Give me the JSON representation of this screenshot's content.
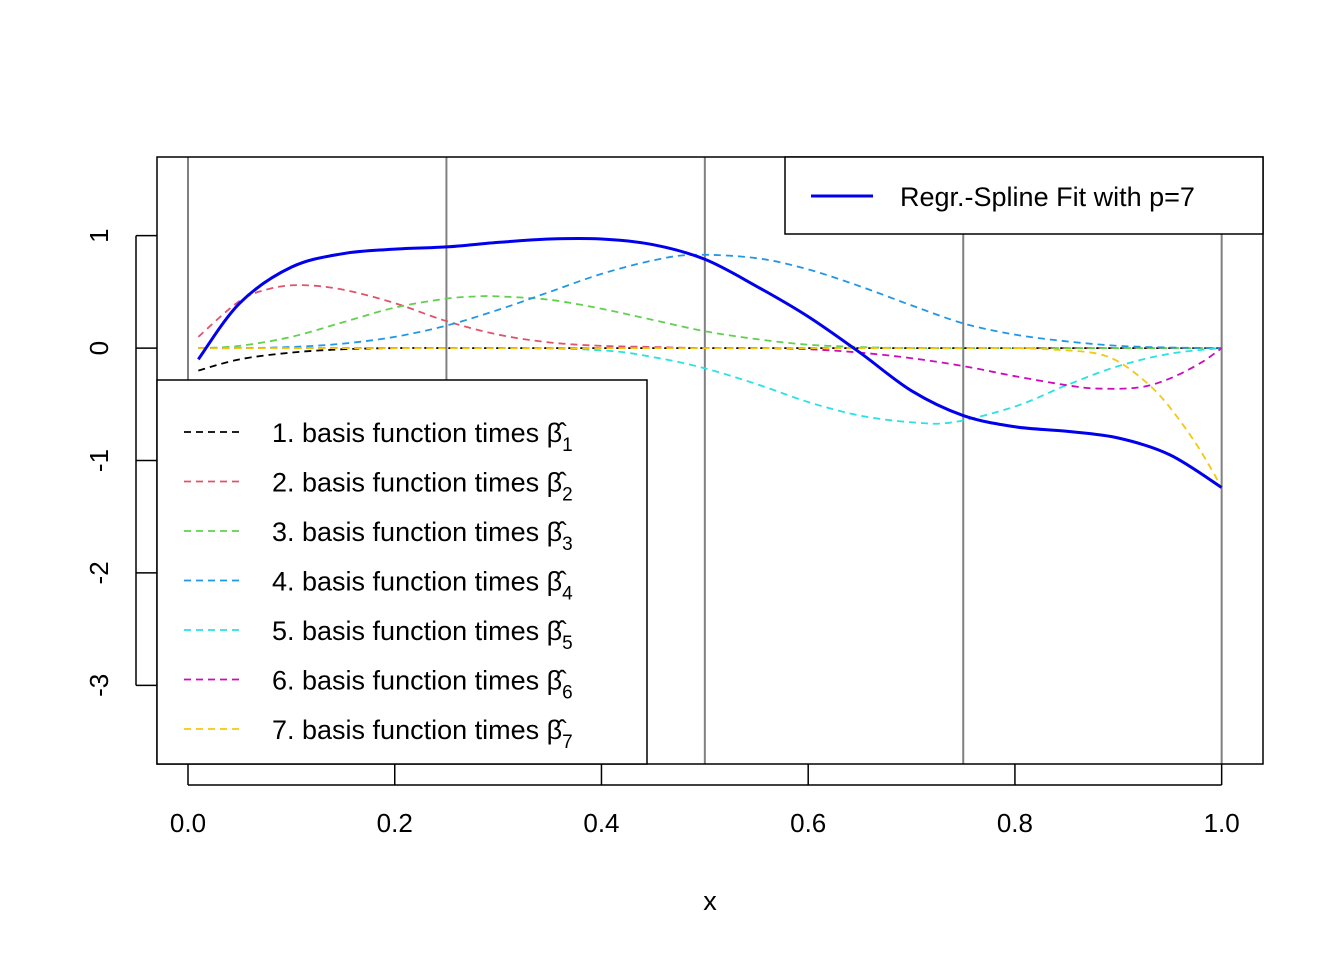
{
  "chart_data": {
    "type": "line",
    "xlabel": "x",
    "ylabel": "",
    "xlim": [
      -0.03,
      1.04
    ],
    "ylim": [
      -3.7,
      1.7
    ],
    "x_ticks": [
      0.0,
      0.2,
      0.4,
      0.6,
      0.8,
      1.0
    ],
    "x_tick_labels": [
      "0.0",
      "0.2",
      "0.4",
      "0.6",
      "0.8",
      "1.0"
    ],
    "y_ticks": [
      1,
      0,
      -1,
      -2,
      -3
    ],
    "y_tick_labels": [
      "1",
      "0",
      "-1",
      "-2",
      "-3"
    ],
    "knots": [
      0.0,
      0.25,
      0.5,
      0.75,
      1.0
    ],
    "knot_color": "#808080",
    "baseline_y": 0,
    "fit": {
      "name": "Regr.-Spline Fit with p=7",
      "color": "#0000ee",
      "x": [
        0.01,
        0.05,
        0.1,
        0.15,
        0.2,
        0.25,
        0.3,
        0.35,
        0.4,
        0.45,
        0.5,
        0.55,
        0.6,
        0.65,
        0.7,
        0.75,
        0.8,
        0.85,
        0.9,
        0.95,
        1.0
      ],
      "y": [
        -0.1,
        0.4,
        0.72,
        0.84,
        0.88,
        0.9,
        0.94,
        0.97,
        0.97,
        0.92,
        0.79,
        0.55,
        0.28,
        -0.04,
        -0.38,
        -0.6,
        -0.7,
        -0.74,
        -0.8,
        -0.95,
        -1.24
      ]
    },
    "series": [
      {
        "name": "1. basis function times",
        "index": "1",
        "color": "#000000",
        "x": [
          0.01,
          0.05,
          0.1,
          0.15,
          0.2,
          0.25,
          0.3,
          0.4,
          0.5,
          0.6,
          0.7,
          0.8,
          0.9,
          1.0
        ],
        "y": [
          -0.2,
          -0.1,
          -0.04,
          -0.01,
          0.0,
          0.0,
          0.0,
          0.0,
          0.0,
          0.0,
          0.0,
          0.0,
          0.0,
          0.0
        ]
      },
      {
        "name": "2. basis function times",
        "index": "2",
        "color": "#df536b",
        "x": [
          0.01,
          0.05,
          0.08,
          0.11,
          0.15,
          0.2,
          0.25,
          0.3,
          0.35,
          0.4,
          0.45,
          0.5,
          0.6,
          0.7,
          0.8,
          0.9,
          1.0
        ],
        "y": [
          0.1,
          0.42,
          0.53,
          0.56,
          0.52,
          0.4,
          0.24,
          0.12,
          0.05,
          0.02,
          0.01,
          0.0,
          0.0,
          0.0,
          0.0,
          0.0,
          0.0
        ]
      },
      {
        "name": "3. basis function times",
        "index": "3",
        "color": "#61d04f",
        "x": [
          0.01,
          0.05,
          0.1,
          0.15,
          0.2,
          0.25,
          0.28,
          0.3,
          0.35,
          0.4,
          0.45,
          0.5,
          0.55,
          0.6,
          0.65,
          0.7,
          0.8,
          0.9,
          1.0
        ],
        "y": [
          0.0,
          0.02,
          0.1,
          0.23,
          0.36,
          0.44,
          0.46,
          0.46,
          0.43,
          0.35,
          0.25,
          0.15,
          0.08,
          0.03,
          0.01,
          0.0,
          0.0,
          0.0,
          0.0
        ]
      },
      {
        "name": "4. basis function times",
        "index": "4",
        "color": "#2297e6",
        "x": [
          0.01,
          0.05,
          0.1,
          0.15,
          0.2,
          0.25,
          0.3,
          0.35,
          0.4,
          0.45,
          0.49,
          0.55,
          0.6,
          0.65,
          0.7,
          0.75,
          0.8,
          0.85,
          0.9,
          0.95,
          1.0
        ],
        "y": [
          0.0,
          0.0,
          0.01,
          0.04,
          0.1,
          0.2,
          0.34,
          0.5,
          0.66,
          0.78,
          0.83,
          0.8,
          0.7,
          0.55,
          0.38,
          0.22,
          0.12,
          0.06,
          0.02,
          0.005,
          0.0
        ]
      },
      {
        "name": "5. basis function times",
        "index": "5",
        "color": "#28e2e5",
        "x": [
          0.01,
          0.3,
          0.4,
          0.45,
          0.5,
          0.55,
          0.6,
          0.65,
          0.7,
          0.74,
          0.8,
          0.85,
          0.9,
          0.95,
          1.0
        ],
        "y": [
          0.0,
          0.0,
          -0.02,
          -0.08,
          -0.18,
          -0.32,
          -0.48,
          -0.6,
          -0.66,
          -0.66,
          -0.52,
          -0.33,
          -0.16,
          -0.05,
          0.0
        ]
      },
      {
        "name": "6. basis function times",
        "index": "6",
        "color": "#cd0bbc",
        "x": [
          0.01,
          0.5,
          0.55,
          0.6,
          0.65,
          0.7,
          0.75,
          0.8,
          0.85,
          0.88,
          0.92,
          0.95,
          0.98,
          1.0
        ],
        "y": [
          0.0,
          0.0,
          0.0,
          -0.01,
          -0.04,
          -0.09,
          -0.16,
          -0.25,
          -0.33,
          -0.36,
          -0.35,
          -0.27,
          -0.13,
          0.0
        ]
      },
      {
        "name": "7. basis function times",
        "index": "7",
        "color": "#f5c710",
        "x": [
          0.01,
          0.75,
          0.8,
          0.85,
          0.88,
          0.9,
          0.92,
          0.94,
          0.96,
          0.98,
          1.0
        ],
        "y": [
          0.0,
          0.0,
          0.0,
          -0.02,
          -0.05,
          -0.12,
          -0.25,
          -0.42,
          -0.65,
          -0.92,
          -1.24
        ]
      }
    ],
    "legend_main_position": "top-right",
    "legend_basis_position": "bottom-left",
    "legend_basis_coef_symbol": "β̂"
  }
}
